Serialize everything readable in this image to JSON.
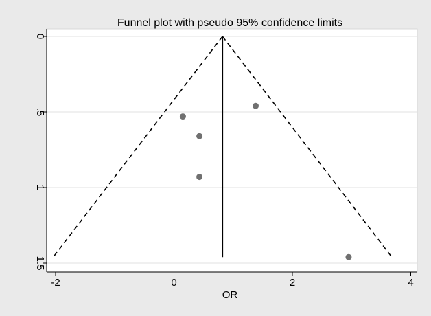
{
  "chart_data": {
    "type": "scatter",
    "title": "Funnel plot with pseudo 95% confidence limits",
    "xlabel": "OR",
    "ylabel": "",
    "xlim": [
      -2.1,
      4.0
    ],
    "ylim": [
      1.5,
      0.0
    ],
    "y_reversed": true,
    "x_ticks": [
      -2,
      0,
      2,
      4
    ],
    "x_tick_labels": [
      "-2",
      "0",
      "2",
      "4"
    ],
    "y_ticks": [
      0,
      0.5,
      1,
      1.5
    ],
    "y_tick_labels": [
      "0",
      ".5",
      "1",
      "1.5"
    ],
    "grid": "horizontal",
    "points": [
      {
        "x": 0.15,
        "y": 0.53
      },
      {
        "x": 0.43,
        "y": 0.66
      },
      {
        "x": 0.43,
        "y": 0.93
      },
      {
        "x": 1.38,
        "y": 0.46
      },
      {
        "x": 2.95,
        "y": 1.46
      }
    ],
    "pooled_estimate": 0.82,
    "confidence_limits": {
      "apex": {
        "x": 0.82,
        "y": 0.0
      },
      "lower": {
        "x": -2.04,
        "y": 1.46
      },
      "upper": {
        "x": 3.68,
        "y": 1.46
      }
    },
    "colors": {
      "outer_background": "#eaeaea",
      "plot_background": "#ffffff",
      "gridline": "#e2e2e2",
      "point": "#707070",
      "line": "#000000"
    }
  }
}
